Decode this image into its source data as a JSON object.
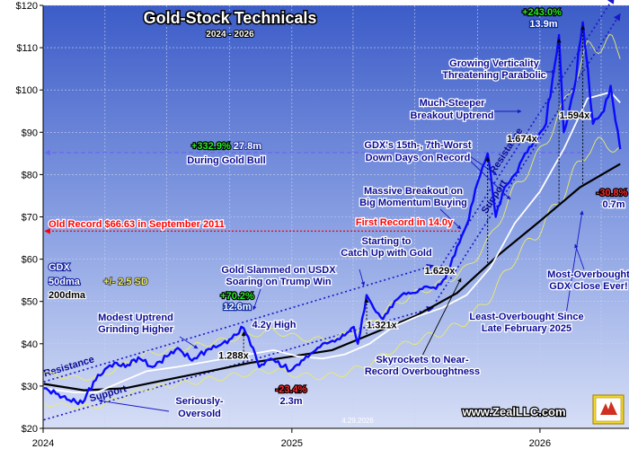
{
  "chart_data": {
    "type": "line",
    "title": "Gold-Stock Technicals",
    "subtitle": "2024 - 2026",
    "date_stamp": "4.29.2026",
    "website": "www.ZealLLC.com",
    "xlabels": [
      "2024",
      "2025",
      "2026"
    ],
    "ylim": [
      20,
      120
    ],
    "yticks": [
      20,
      30,
      40,
      50,
      60,
      70,
      80,
      90,
      100,
      110,
      120
    ],
    "ytick_labels": [
      "$20",
      "$30",
      "$40",
      "$50",
      "$60",
      "$70",
      "$80",
      "$90",
      "$100",
      "$110",
      "$120"
    ],
    "grid": true,
    "legend": {
      "series_name": "GDX",
      "band_label": "50dma",
      "band_sd": "+/- 2.5 SD",
      "long_ma_label": "200dma"
    },
    "colors": {
      "price": "#0a0aff",
      "ma50": "#ffffff",
      "ma200": "#000000",
      "bands": "#ecec66",
      "trend": "#1818c8",
      "old_record": "#ff0000",
      "gold_bull": "#6868ee",
      "bg_top": "#3c5cc8",
      "bg_bottom": "#d6def6",
      "positive": "#22ee22",
      "negative": "#ff2a2a",
      "label_text": "#0a0a96"
    },
    "reference_lines": [
      {
        "name": "old-record",
        "value": 66.63,
        "label": "Old Record $66.63 in September 2011",
        "color": "#ff0000"
      },
      {
        "name": "gold-bull",
        "value": 85.2,
        "label": "During Gold Bull",
        "color": "#6868ee"
      }
    ],
    "series": [
      {
        "name": "GDX",
        "role": "price",
        "x": [
          "2024-01-02",
          "2024-01-20",
          "2024-02-05",
          "2024-02-28",
          "2024-03-15",
          "2024-04-01",
          "2024-04-15",
          "2024-05-01",
          "2024-05-20",
          "2024-06-10",
          "2024-07-01",
          "2024-07-17",
          "2024-08-07",
          "2024-08-28",
          "2024-09-15",
          "2024-10-01",
          "2024-10-22",
          "2024-11-05",
          "2024-11-14",
          "2024-12-01",
          "2024-12-30",
          "2025-01-15",
          "2025-02-01",
          "2025-02-15",
          "2025-03-05",
          "2025-03-20",
          "2025-04-02",
          "2025-04-08",
          "2025-04-21",
          "2025-05-05",
          "2025-05-15",
          "2025-06-01",
          "2025-06-15",
          "2025-07-01",
          "2025-07-15",
          "2025-08-01",
          "2025-08-15",
          "2025-09-01",
          "2025-09-15",
          "2025-10-01",
          "2025-10-16",
          "2025-10-28",
          "2025-11-10",
          "2025-11-25",
          "2025-12-10",
          "2025-12-26",
          "2026-01-10",
          "2026-01-29",
          "2026-02-05",
          "2026-02-20",
          "2026-03-05",
          "2026-03-20",
          "2026-04-05",
          "2026-04-15",
          "2026-04-29"
        ],
        "values": [
          29.5,
          28.2,
          26.8,
          26.0,
          31.0,
          34.0,
          35.5,
          34.5,
          36.8,
          34.5,
          37.0,
          39.0,
          36.0,
          38.5,
          39.5,
          41.0,
          43.7,
          39.0,
          34.5,
          36.5,
          33.6,
          36.0,
          38.0,
          40.0,
          40.5,
          42.0,
          44.0,
          40.0,
          51.5,
          47.5,
          45.8,
          50.0,
          52.0,
          52.0,
          53.5,
          53.0,
          55.5,
          63.0,
          68.0,
          78.0,
          85.0,
          70.0,
          77.0,
          80.0,
          85.0,
          88.0,
          92.0,
          113.0,
          90.0,
          100.0,
          116.0,
          92.0,
          95.0,
          101.0,
          86.0
        ]
      },
      {
        "name": "50dma",
        "role": "ma50",
        "x": [
          "2024-01-02",
          "2024-02-15",
          "2024-03-20",
          "2024-04-25",
          "2024-06-01",
          "2024-07-15",
          "2024-08-20",
          "2024-09-25",
          "2024-10-30",
          "2024-12-05",
          "2025-01-10",
          "2025-02-15",
          "2025-03-20",
          "2025-04-25",
          "2025-05-30",
          "2025-07-05",
          "2025-08-10",
          "2025-09-15",
          "2025-10-20",
          "2025-11-25",
          "2026-01-01",
          "2026-02-05",
          "2026-03-12",
          "2026-04-15",
          "2026-04-29"
        ],
        "values": [
          29.5,
          28.5,
          28.5,
          31.0,
          33.5,
          34.5,
          35.5,
          36.5,
          37.5,
          38.5,
          37.0,
          36.5,
          37.5,
          40.0,
          44.0,
          46.5,
          48.5,
          51.5,
          58.0,
          68.5,
          76.0,
          86.0,
          98.0,
          99.5,
          97.0
        ]
      },
      {
        "name": "200dma",
        "role": "ma200",
        "x": [
          "2024-01-02",
          "2024-03-01",
          "2024-05-01",
          "2024-07-01",
          "2024-09-01",
          "2024-11-01",
          "2025-01-01",
          "2025-03-01",
          "2025-05-01",
          "2025-07-01",
          "2025-09-01",
          "2025-11-01",
          "2026-01-01",
          "2026-03-01",
          "2026-04-29"
        ],
        "values": [
          30.5,
          29.0,
          29.5,
          31.5,
          33.5,
          35.5,
          37.0,
          38.5,
          42.5,
          46.5,
          52.0,
          61.0,
          69.0,
          77.0,
          82.5
        ]
      }
    ],
    "trend_lines": [
      {
        "name": "resistance-line-1",
        "label": "Resistance",
        "x": [
          "2024-01-02",
          "2025-07-28"
        ],
        "values": [
          31.0,
          58.5
        ]
      },
      {
        "name": "support-line-1",
        "label": "Support",
        "x": [
          "2024-01-02",
          "2025-07-28"
        ],
        "values": [
          22.0,
          48.5
        ]
      },
      {
        "name": "resistance-line-2",
        "label": "Resistance",
        "x": [
          "2025-08-01",
          "2026-04-20"
        ],
        "values": [
          56.5,
          122.0
        ]
      },
      {
        "name": "support-line-2",
        "label": "Support",
        "x": [
          "2025-08-01",
          "2026-04-29"
        ],
        "values": [
          50.0,
          118.0
        ]
      }
    ],
    "annotations": [
      {
        "name": "gold-bull-label",
        "parts": [
          {
            "t": "+332.9%",
            "c": "positive"
          },
          {
            "t": " 27.8m",
            "c": "white"
          }
        ]
      },
      {
        "name": "gold-bull-caption",
        "text": "During Gold Bull"
      },
      {
        "name": "gain-243",
        "parts": [
          {
            "t": "+243.0%",
            "c": "positive"
          }
        ]
      },
      {
        "name": "gain-243-time",
        "text": "13.9m"
      },
      {
        "name": "growing-verticality",
        "text": "Growing Verticality"
      },
      {
        "name": "threatening-parabolic",
        "text": "Threatening Parabolic"
      },
      {
        "name": "much-steeper",
        "text": "Much-Steeper"
      },
      {
        "name": "breakout-uptrend",
        "text": "Breakout Uptrend"
      },
      {
        "name": "worst-days-1",
        "text": "GDX's 15th-, 7th-Worst"
      },
      {
        "name": "worst-days-2",
        "text": "Down Days on Record"
      },
      {
        "name": "massive-breakout",
        "text": "Massive Breakout on"
      },
      {
        "name": "big-momentum",
        "text": "Big Momentum Buying"
      },
      {
        "name": "first-record",
        "text": "First Record in 14.0y"
      },
      {
        "name": "starting-to",
        "text": "Starting to"
      },
      {
        "name": "catch-up",
        "text": "Catch Up with Gold"
      },
      {
        "name": "gold-slammed",
        "text": "Gold Slammed on USDX"
      },
      {
        "name": "soaring-trump",
        "text": "Soaring on Trump Win"
      },
      {
        "name": "gain-70",
        "parts": [
          {
            "t": "+70.2%",
            "c": "positive"
          }
        ]
      },
      {
        "name": "gain-70-time",
        "text": "12.6m"
      },
      {
        "name": "high-4-2y",
        "text": "4.2y High"
      },
      {
        "name": "modest-uptrend",
        "text": "Modest Uptrend"
      },
      {
        "name": "grinding-higher",
        "text": "Grinding Higher"
      },
      {
        "name": "loss-23",
        "parts": [
          {
            "t": "-23.4%",
            "c": "negative"
          }
        ]
      },
      {
        "name": "loss-23-time",
        "text": "2.3m"
      },
      {
        "name": "seriously",
        "text": "Seriously-"
      },
      {
        "name": "oversold",
        "text": "Oversold"
      },
      {
        "name": "skyrockets",
        "text": "Skyrockets to Near-"
      },
      {
        "name": "record-overboughtness",
        "text": "Record Overboughtness"
      },
      {
        "name": "most-overbought",
        "text": "Most-Overbought"
      },
      {
        "name": "gdx-close-ever",
        "text": "GDX Close Ever!"
      },
      {
        "name": "least-overbought",
        "text": "Least-Overbought Since"
      },
      {
        "name": "late-feb",
        "text": "Late February 2025"
      },
      {
        "name": "loss-30",
        "parts": [
          {
            "t": "-30.8%",
            "c": "negative"
          }
        ]
      },
      {
        "name": "loss-30-time",
        "text": "0.7m"
      }
    ],
    "ratio_markers": [
      {
        "label": "1.288x"
      },
      {
        "label": "1.321x"
      },
      {
        "label": "1.629x"
      },
      {
        "label": "1.674x"
      },
      {
        "label": "1.594x"
      }
    ]
  }
}
